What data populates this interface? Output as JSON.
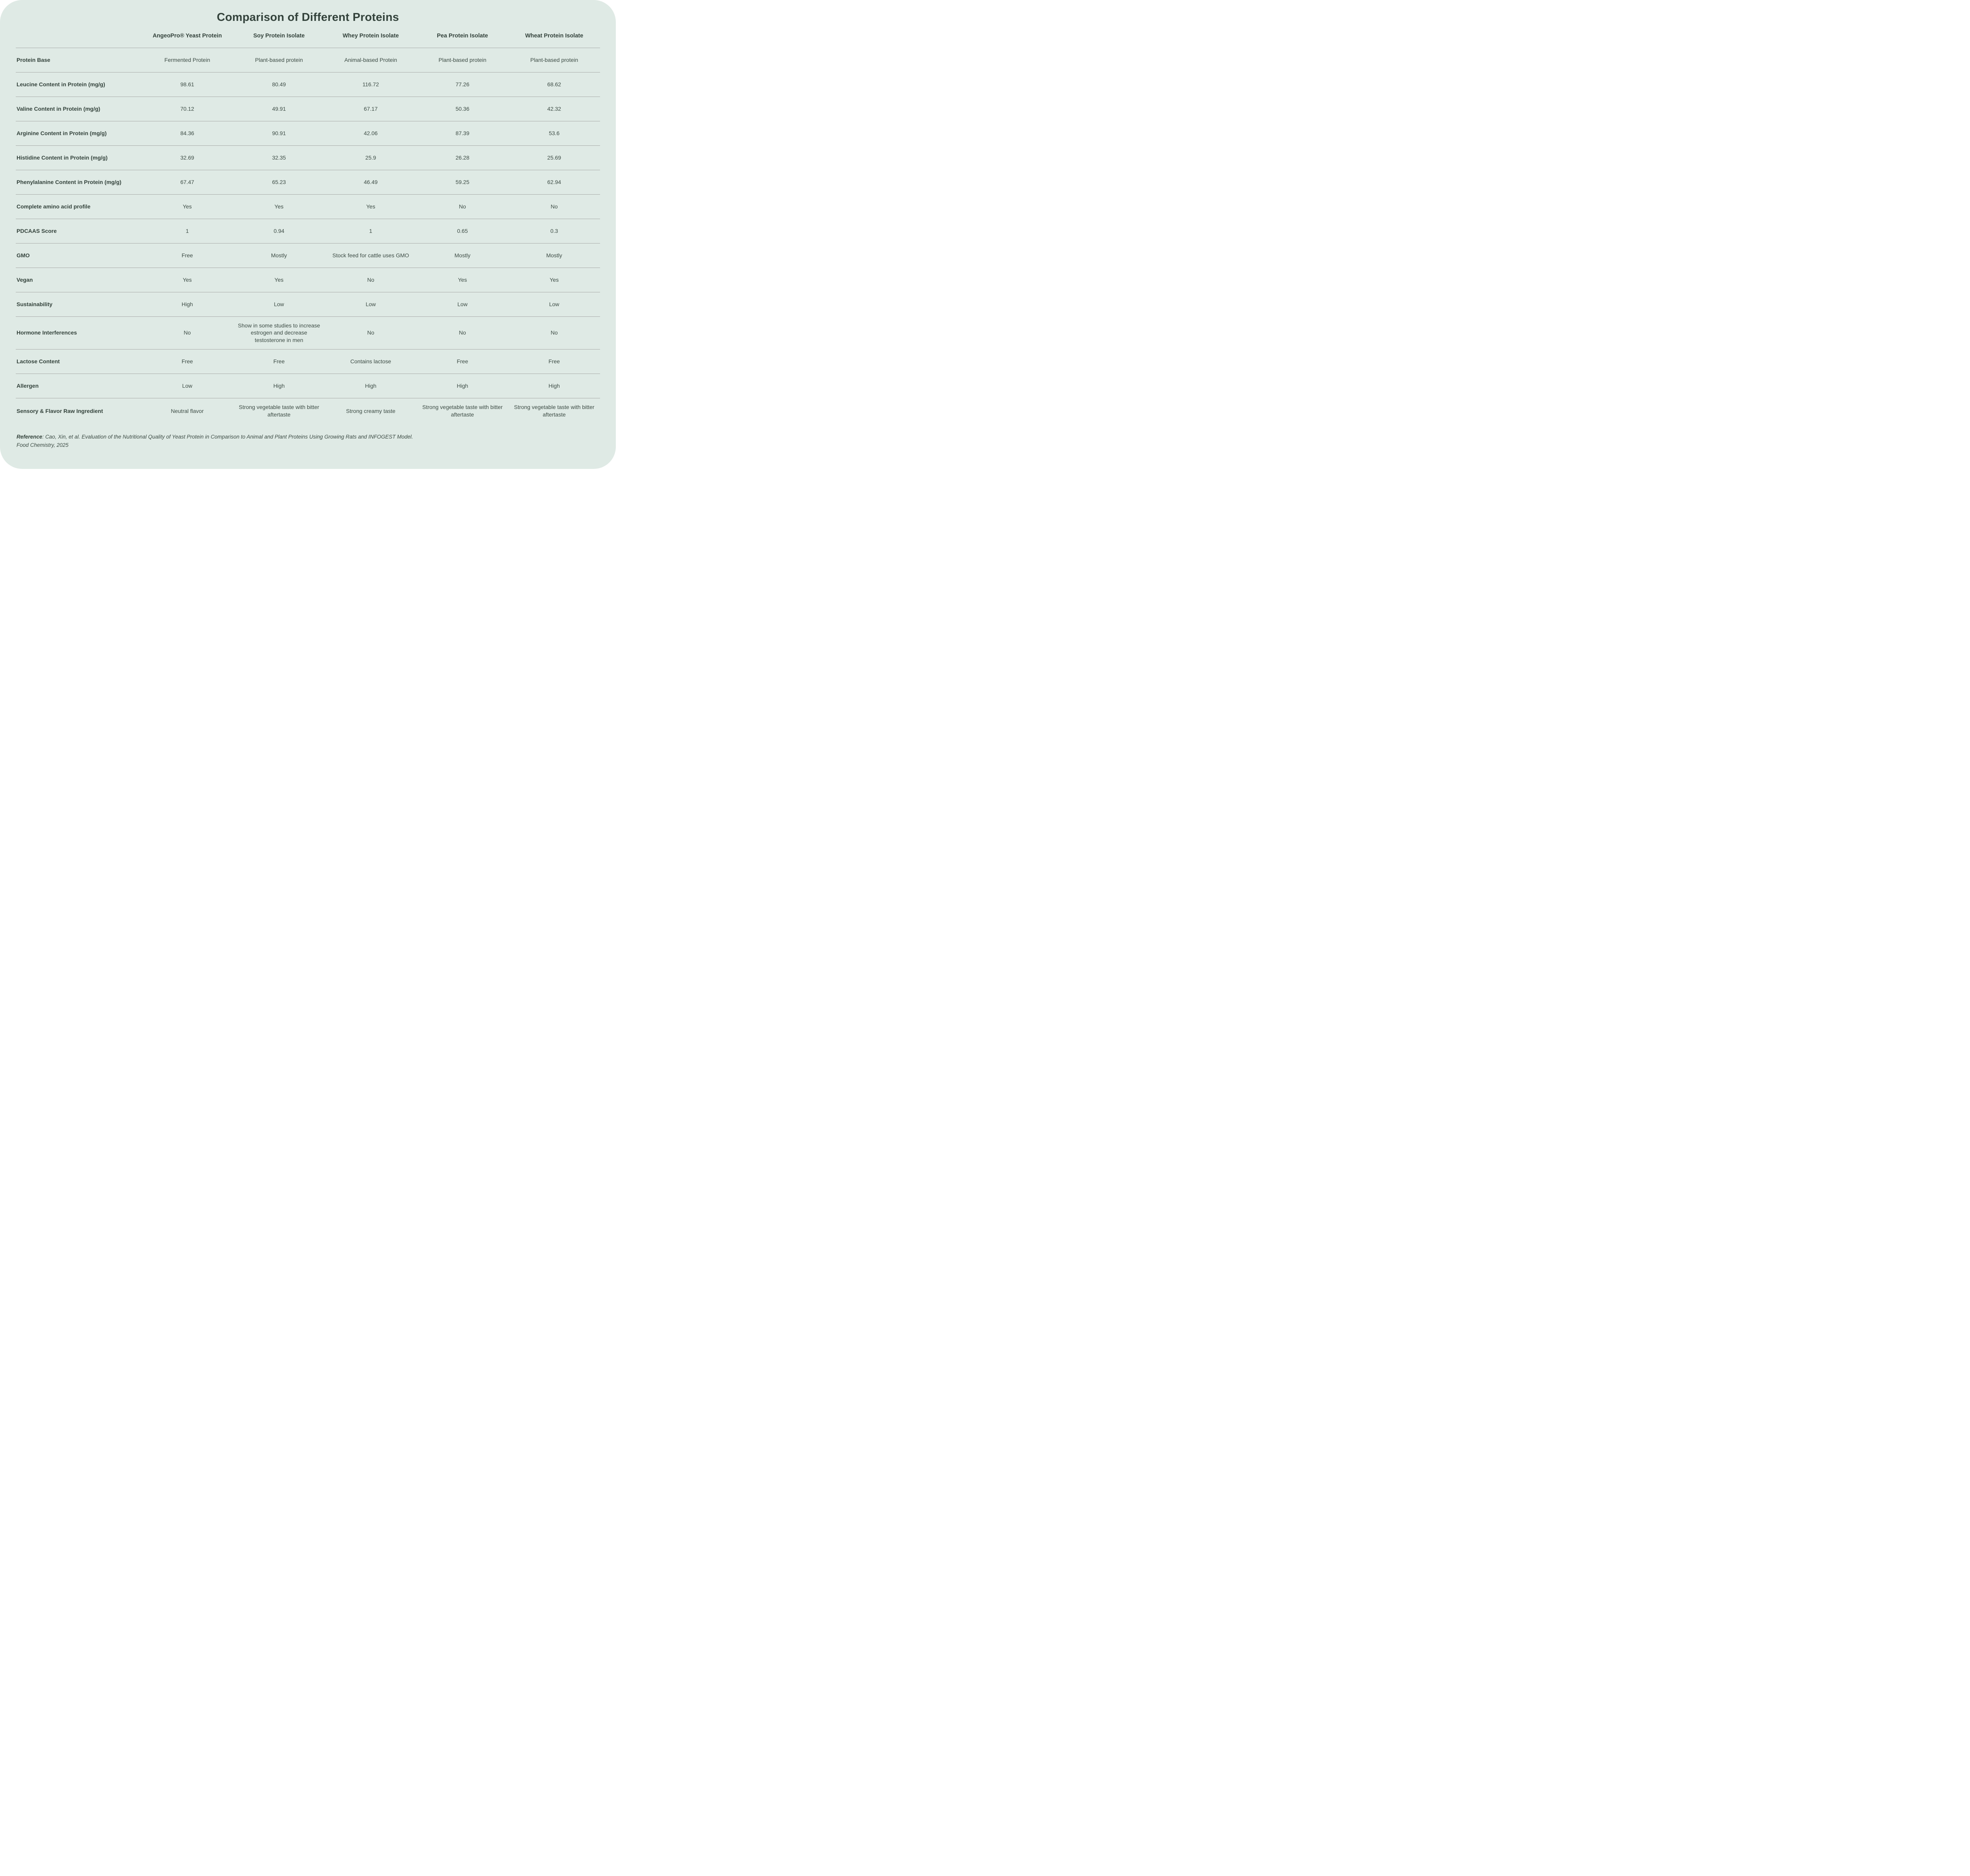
{
  "colors": {
    "page_bg": "#ffffff",
    "card_bg": "#dfeae5",
    "text": "#3d4c45",
    "heading": "#33423b",
    "line": "#a7aaa8"
  },
  "chart_data": {
    "type": "table",
    "title": "Comparison of Different Proteins",
    "columns": [
      "AngeoPro® Yeast Protein",
      "Soy Protein Isolate",
      "Whey Protein Isolate",
      "Pea Protein Isolate",
      "Wheat Protein Isolate"
    ],
    "rows": [
      {
        "label": "Protein Base",
        "values": [
          "Fermented Protein",
          "Plant-based protein",
          "Animal-based Protein",
          "Plant-based protein",
          "Plant-based protein"
        ]
      },
      {
        "label": "Leucine Content in Protein (mg/g)",
        "values": [
          "98.61",
          "80.49",
          "116.72",
          "77.26",
          "68.62"
        ]
      },
      {
        "label": "Valine Content in Protein (mg/g)",
        "values": [
          "70.12",
          "49.91",
          "67.17",
          "50.36",
          "42.32"
        ]
      },
      {
        "label": "Arginine Content in Protein (mg/g)",
        "values": [
          "84.36",
          "90.91",
          "42.06",
          "87.39",
          "53.6"
        ]
      },
      {
        "label": "Histidine Content in Protein (mg/g)",
        "values": [
          "32.69",
          "32.35",
          "25.9",
          "26.28",
          "25.69"
        ]
      },
      {
        "label": "Phenylalanine Content in Protein (mg/g)",
        "values": [
          "67.47",
          "65.23",
          "46.49",
          "59.25",
          "62.94"
        ]
      },
      {
        "label": "Complete amino acid profile",
        "values": [
          "Yes",
          "Yes",
          "Yes",
          "No",
          "No"
        ]
      },
      {
        "label": "PDCAAS Score",
        "values": [
          "1",
          "0.94",
          "1",
          "0.65",
          "0.3"
        ]
      },
      {
        "label": "GMO",
        "values": [
          "Free",
          "Mostly",
          "Stock feed for cattle uses GMO",
          "Mostly",
          "Mostly"
        ]
      },
      {
        "label": "Vegan",
        "values": [
          "Yes",
          "Yes",
          "No",
          "Yes",
          "Yes"
        ]
      },
      {
        "label": "Sustainability",
        "values": [
          "High",
          "Low",
          "Low",
          "Low",
          "Low"
        ]
      },
      {
        "label": "Hormone Interferences",
        "values": [
          "No",
          "Show in some studies to increase estrogen and decrease testosterone in men",
          "No",
          "No",
          "No"
        ]
      },
      {
        "label": "Lactose Content",
        "values": [
          "Free",
          "Free",
          "Contains lactose",
          "Free",
          "Free"
        ]
      },
      {
        "label": "Allergen",
        "values": [
          "Low",
          "High",
          "High",
          "High",
          "High"
        ]
      },
      {
        "label": "Sensory & Flavor Raw Ingredient",
        "values": [
          "Neutral flavor",
          "Strong vegetable taste with bitter aftertaste",
          "Strong creamy taste",
          "Strong vegetable taste with bitter aftertaste",
          "Strong vegetable taste with bitter aftertaste"
        ]
      }
    ]
  },
  "reference": {
    "label": "Reference",
    "separator": ":  ",
    "citation": "Cao, Xin, et al. Evaluation of the Nutritional Quality of Yeast Protein in Comparison to Animal and Plant Proteins Using Growing Rats and INFOGEST Model.",
    "journal": "Food Chemistry, 2025"
  }
}
